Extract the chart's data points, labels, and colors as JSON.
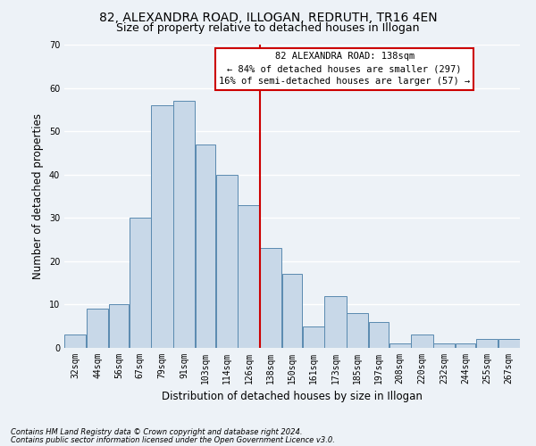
{
  "title_line1": "82, ALEXANDRA ROAD, ILLOGAN, REDRUTH, TR16 4EN",
  "title_line2": "Size of property relative to detached houses in Illogan",
  "xlabel": "Distribution of detached houses by size in Illogan",
  "ylabel": "Number of detached properties",
  "footnote1": "Contains HM Land Registry data © Crown copyright and database right 2024.",
  "footnote2": "Contains public sector information licensed under the Open Government Licence v3.0.",
  "annotation_line1": "82 ALEXANDRA ROAD: 138sqm",
  "annotation_line2": "← 84% of detached houses are smaller (297)",
  "annotation_line3": "16% of semi-detached houses are larger (57) →",
  "bar_color": "#c8d8e8",
  "bar_edge_color": "#5a8ab0",
  "reference_line_color": "#cc0000",
  "categories": [
    "32sqm",
    "44sqm",
    "56sqm",
    "67sqm",
    "79sqm",
    "91sqm",
    "103sqm",
    "114sqm",
    "126sqm",
    "138sqm",
    "150sqm",
    "161sqm",
    "173sqm",
    "185sqm",
    "197sqm",
    "208sqm",
    "220sqm",
    "232sqm",
    "244sqm",
    "255sqm",
    "267sqm"
  ],
  "bin_edges": [
    26,
    38,
    50,
    61,
    73,
    85,
    97,
    108,
    120,
    132,
    144,
    155,
    167,
    179,
    191,
    202,
    214,
    226,
    238,
    249,
    261,
    273
  ],
  "values": [
    3,
    9,
    10,
    30,
    56,
    57,
    47,
    40,
    33,
    23,
    17,
    5,
    12,
    8,
    6,
    1,
    3,
    1,
    1,
    2,
    2
  ],
  "ylim": [
    0,
    70
  ],
  "yticks": [
    0,
    10,
    20,
    30,
    40,
    50,
    60,
    70
  ],
  "background_color": "#edf2f7",
  "grid_color": "#ffffff",
  "title_fontsize": 10,
  "subtitle_fontsize": 9,
  "axis_label_fontsize": 8.5,
  "tick_fontsize": 7,
  "annotation_fontsize": 7.5,
  "footnote_fontsize": 6
}
